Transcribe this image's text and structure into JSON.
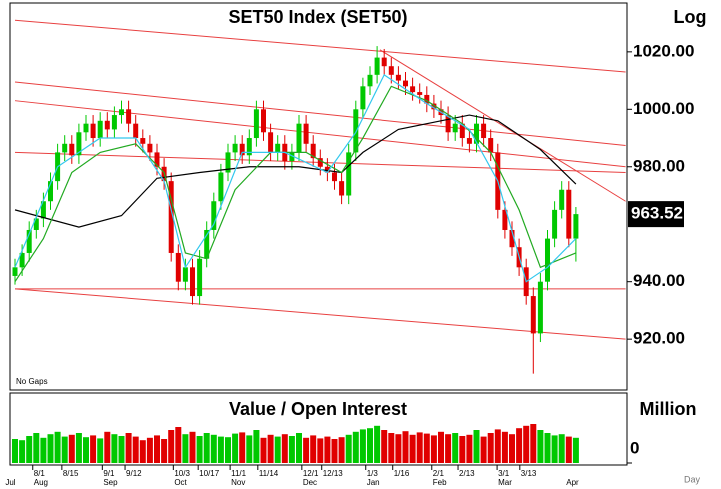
{
  "chart_data": {
    "type": "candlestick",
    "title": "SET50 Index (SET50)",
    "scale_label": "Log",
    "note": "No Gaps",
    "open": [
      942,
      945,
      950,
      958,
      962,
      968,
      975,
      985,
      988,
      984,
      992,
      995,
      990,
      996,
      993,
      998,
      1000,
      995,
      990,
      988,
      985,
      980,
      975,
      950,
      940,
      945,
      935,
      948,
      958,
      968,
      978,
      985,
      988,
      984,
      990,
      1000,
      992,
      985,
      988,
      982,
      985,
      995,
      988,
      983,
      980,
      978,
      975,
      970,
      985,
      1000,
      1008,
      1012,
      1018,
      1015,
      1012,
      1010,
      1008,
      1006,
      1005,
      1002,
      1000,
      998,
      992,
      995,
      990,
      988,
      995,
      990,
      985,
      965,
      958,
      952,
      945,
      935,
      922,
      940,
      955,
      965,
      972,
      955
    ],
    "high": [
      948,
      953,
      961,
      965,
      971,
      978,
      988,
      991,
      991,
      995,
      998,
      998,
      999,
      999,
      1001,
      1003,
      1003,
      998,
      993,
      991,
      988,
      983,
      978,
      953,
      948,
      948,
      951,
      961,
      971,
      981,
      988,
      991,
      991,
      993,
      1003,
      1003,
      995,
      991,
      991,
      988,
      998,
      998,
      991,
      986,
      983,
      981,
      978,
      988,
      1003,
      1011,
      1015,
      1022,
      1021,
      1018,
      1015,
      1013,
      1011,
      1009,
      1008,
      1005,
      1003,
      1001,
      998,
      998,
      993,
      998,
      998,
      993,
      988,
      968,
      961,
      955,
      948,
      938,
      943,
      958,
      968,
      975,
      975,
      966
    ],
    "low": [
      939,
      942,
      947,
      955,
      959,
      965,
      972,
      982,
      981,
      981,
      989,
      987,
      987,
      990,
      990,
      995,
      992,
      987,
      985,
      982,
      977,
      972,
      947,
      937,
      937,
      932,
      932,
      945,
      955,
      965,
      975,
      982,
      981,
      981,
      987,
      989,
      982,
      982,
      979,
      979,
      982,
      985,
      980,
      977,
      975,
      972,
      967,
      967,
      982,
      997,
      1005,
      1009,
      1012,
      1009,
      1007,
      1005,
      1003,
      1002,
      999,
      997,
      995,
      989,
      989,
      987,
      985,
      985,
      987,
      982,
      962,
      955,
      949,
      942,
      932,
      908,
      919,
      937,
      952,
      962,
      952,
      947
    ],
    "close": [
      945,
      950,
      958,
      962,
      968,
      975,
      985,
      988,
      984,
      992,
      995,
      990,
      996,
      993,
      998,
      1000,
      995,
      990,
      988,
      985,
      980,
      975,
      950,
      940,
      945,
      935,
      948,
      958,
      968,
      978,
      985,
      988,
      984,
      990,
      1000,
      992,
      985,
      988,
      982,
      985,
      995,
      988,
      983,
      980,
      978,
      975,
      970,
      985,
      1000,
      1008,
      1012,
      1018,
      1015,
      1012,
      1010,
      1008,
      1006,
      1005,
      1002,
      1000,
      998,
      992,
      995,
      990,
      988,
      995,
      990,
      985,
      965,
      958,
      952,
      945,
      935,
      922,
      940,
      955,
      965,
      972,
      955,
      963.52
    ],
    "up_color": "#00c800",
    "down_color": "#e00000",
    "ylim": [
      903,
      1037
    ],
    "yticks": [
      {
        "value": 920,
        "label": "920.00"
      },
      {
        "value": 940,
        "label": "940.00"
      },
      {
        "value": 980,
        "label": "980.00"
      },
      {
        "value": 1000,
        "label": "1000.00"
      },
      {
        "value": 1020,
        "label": "1020.00"
      }
    ],
    "last_price": 963.52,
    "moving_averages": [
      {
        "color": "#000000",
        "x": [
          0,
          9,
          15,
          20,
          26,
          33,
          40,
          46,
          49,
          54,
          64,
          68,
          74,
          79
        ],
        "values": [
          965,
          959,
          963,
          976,
          978,
          980,
          980,
          978,
          985,
          993,
          998,
          996,
          986,
          974
        ]
      },
      {
        "color": "#22aa22",
        "x": [
          0,
          4,
          8,
          12,
          17,
          21,
          24,
          27,
          31,
          36,
          41,
          46,
          49,
          53,
          58,
          63,
          67,
          71,
          74,
          77,
          79
        ],
        "values": [
          940,
          955,
          978,
          985,
          988,
          978,
          950,
          948,
          972,
          985,
          985,
          978,
          990,
          1008,
          1003,
          995,
          985,
          965,
          945,
          948,
          950
        ]
      },
      {
        "color": "#33c8ee",
        "x": [
          0,
          6,
          12,
          17,
          21,
          24,
          28,
          32,
          38,
          44,
          48,
          52,
          58,
          64,
          68,
          72,
          75,
          79
        ],
        "values": [
          945,
          980,
          990,
          990,
          975,
          945,
          960,
          985,
          985,
          978,
          992,
          1012,
          1002,
          993,
          975,
          940,
          945,
          955
        ]
      }
    ],
    "trendline_color": "#e84040",
    "trendlines": [
      {
        "x": [
          0,
          86
        ],
        "values": [
          1031,
          1013
        ]
      },
      {
        "x": [
          0,
          86
        ],
        "values": [
          1009.5,
          987.4
        ]
      },
      {
        "x": [
          0,
          86
        ],
        "values": [
          1003,
          980
        ]
      },
      {
        "x": [
          0,
          86
        ],
        "values": [
          985,
          978
        ]
      },
      {
        "x": [
          0,
          86
        ],
        "values": [
          937.5,
          920
        ]
      },
      {
        "x": [
          0,
          86
        ],
        "values": [
          937.5,
          937.5
        ]
      },
      {
        "x": [
          51.4,
          86
        ],
        "values": [
          1020.7,
          968
        ]
      }
    ],
    "xticks": [
      {
        "value": 2.5,
        "label": "8/1"
      },
      {
        "value": 6.6,
        "label": "8/15"
      },
      {
        "value": 12.3,
        "label": "9/1"
      },
      {
        "value": 15.5,
        "label": "9/12"
      },
      {
        "value": 22.3,
        "label": "10/3"
      },
      {
        "value": 25.8,
        "label": "10/17"
      },
      {
        "value": 30.3,
        "label": "11/1"
      },
      {
        "value": 34.2,
        "label": "11/14"
      },
      {
        "value": 40.4,
        "label": "12/1"
      },
      {
        "value": 43.2,
        "label": "12/13"
      },
      {
        "value": 49.4,
        "label": "1/3"
      },
      {
        "value": 53.2,
        "label": "1/16"
      },
      {
        "value": 58.7,
        "label": "2/1"
      },
      {
        "value": 62.4,
        "label": "2/13"
      },
      {
        "value": 67.9,
        "label": "3/1"
      },
      {
        "value": 71.1,
        "label": "3/13"
      }
    ],
    "month_ticks": [
      {
        "value": -1.5,
        "label": "Jul"
      },
      {
        "value": 2.5,
        "label": "Aug"
      },
      {
        "value": 12.3,
        "label": "Sep"
      },
      {
        "value": 22.3,
        "label": "Oct"
      },
      {
        "value": 30.3,
        "label": "Nov"
      },
      {
        "value": 40.4,
        "label": "Dec"
      },
      {
        "value": 49.4,
        "label": "Jan"
      },
      {
        "value": 58.7,
        "label": "Feb"
      },
      {
        "value": 67.9,
        "label": "Mar"
      },
      {
        "value": 77.5,
        "label": "Apr"
      }
    ],
    "x_axis_label": "Day",
    "volume": {
      "title": "Value / Open Interest",
      "unit_label": "Million",
      "values": [
        40,
        38,
        45,
        50,
        42,
        48,
        52,
        44,
        47,
        50,
        43,
        46,
        41,
        52,
        48,
        45,
        50,
        44,
        38,
        42,
        46,
        40,
        55,
        60,
        48,
        52,
        45,
        50,
        47,
        44,
        43,
        49,
        51,
        46,
        55,
        42,
        47,
        44,
        48,
        45,
        50,
        42,
        46,
        41,
        44,
        40,
        43,
        47,
        52,
        56,
        58,
        62,
        55,
        50,
        48,
        53,
        47,
        51,
        49,
        46,
        52,
        48,
        50,
        45,
        47,
        55,
        44,
        50,
        56,
        52,
        48,
        58,
        62,
        65,
        55,
        50,
        46,
        48,
        44,
        42
      ],
      "ylim": [
        0,
        100
      ],
      "yticks": [
        0
      ]
    }
  }
}
